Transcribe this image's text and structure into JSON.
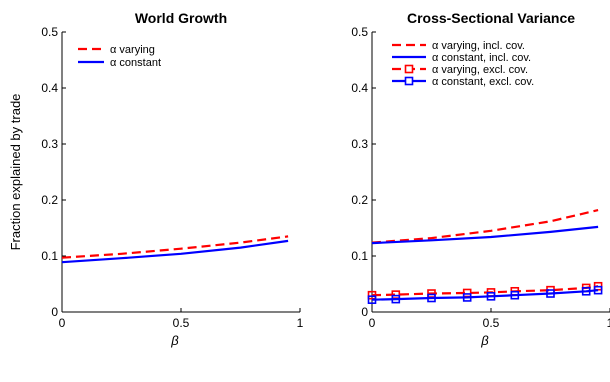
{
  "chart_data": [
    {
      "type": "line",
      "title": "World Growth",
      "xlabel": "β",
      "ylabel": "Fraction explained by trade",
      "xlim": [
        0,
        1
      ],
      "ylim": [
        0,
        0.5
      ],
      "xticks": [
        0,
        0.5,
        1
      ],
      "xtick_labels": [
        "0",
        "0.5",
        "1"
      ],
      "yticks": [
        0,
        0.1,
        0.2,
        0.3,
        0.4,
        0.5
      ],
      "ytick_labels": [
        "0",
        "0.1",
        "0.2",
        "0.3",
        "0.4",
        "0.5"
      ],
      "grid": false,
      "legend_position": "top-left",
      "series": [
        {
          "name": "α varying",
          "color": "#ff0000",
          "dash": "dashed",
          "marker": "none",
          "x": [
            0,
            0.25,
            0.5,
            0.75,
            0.95
          ],
          "y": [
            0.097,
            0.104,
            0.113,
            0.124,
            0.135
          ]
        },
        {
          "name": "α constant",
          "color": "#0000ff",
          "dash": "solid",
          "marker": "none",
          "x": [
            0,
            0.25,
            0.5,
            0.75,
            0.95
          ],
          "y": [
            0.089,
            0.096,
            0.104,
            0.115,
            0.127
          ]
        }
      ]
    },
    {
      "type": "line",
      "title": "Cross-Sectional Variance",
      "xlabel": "β",
      "ylabel": "",
      "xlim": [
        0,
        1
      ],
      "ylim": [
        0,
        0.5
      ],
      "xticks": [
        0,
        0.5,
        1
      ],
      "xtick_labels": [
        "0",
        "0.5",
        "1"
      ],
      "yticks": [
        0,
        0.1,
        0.2,
        0.3,
        0.4,
        0.5
      ],
      "ytick_labels": [
        "0",
        "0.1",
        "0.2",
        "0.3",
        "0.4",
        "0.5"
      ],
      "grid": false,
      "legend_position": "top-left",
      "series": [
        {
          "name": "α varying, incl. cov.",
          "color": "#ff0000",
          "dash": "dashed",
          "marker": "none",
          "x": [
            0,
            0.25,
            0.5,
            0.75,
            0.95
          ],
          "y": [
            0.124,
            0.132,
            0.145,
            0.162,
            0.182
          ]
        },
        {
          "name": "α constant, incl. cov.",
          "color": "#0000ff",
          "dash": "solid",
          "marker": "none",
          "x": [
            0,
            0.25,
            0.5,
            0.75,
            0.95
          ],
          "y": [
            0.123,
            0.128,
            0.134,
            0.143,
            0.152
          ]
        },
        {
          "name": "α varying, excl. cov.",
          "color": "#ff0000",
          "dash": "dashed",
          "marker": "square",
          "x": [
            0,
            0.1,
            0.25,
            0.4,
            0.5,
            0.6,
            0.75,
            0.9,
            0.95
          ],
          "y": [
            0.03,
            0.031,
            0.033,
            0.034,
            0.035,
            0.037,
            0.039,
            0.043,
            0.046
          ]
        },
        {
          "name": "α constant, excl. cov.",
          "color": "#0000ff",
          "dash": "solid",
          "marker": "square",
          "x": [
            0,
            0.1,
            0.25,
            0.4,
            0.5,
            0.6,
            0.75,
            0.9,
            0.95
          ],
          "y": [
            0.022,
            0.023,
            0.025,
            0.026,
            0.028,
            0.03,
            0.033,
            0.037,
            0.039
          ]
        }
      ]
    }
  ]
}
